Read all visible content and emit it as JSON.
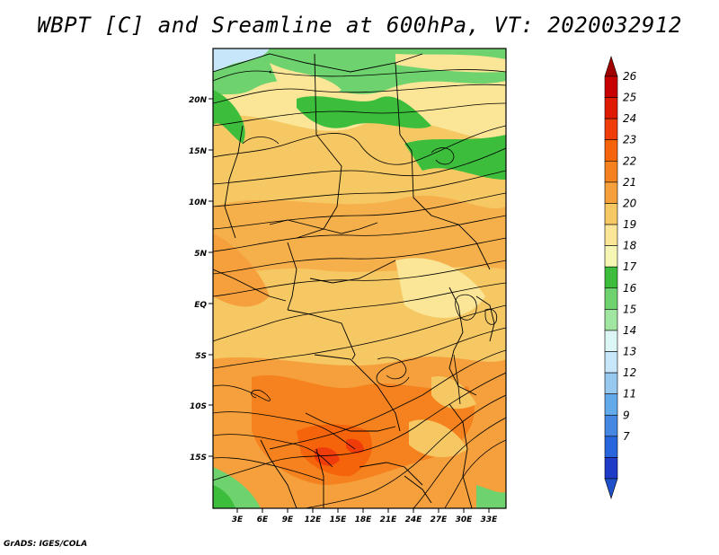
{
  "title": "WBPT [C] and Sreamline at 600hPa, VT: 2020032912",
  "footer": "GrADS: IGES/COLA",
  "map": {
    "region": "Central Africa",
    "lat_labels": [
      "20N",
      "15N",
      "10N",
      "5N",
      "EQ",
      "5S",
      "10S",
      "15S"
    ],
    "lon_labels": [
      "3E",
      "6E",
      "9E",
      "12E",
      "15E",
      "18E",
      "21E",
      "24E",
      "27E",
      "30E",
      "33E"
    ]
  },
  "colorbar": {
    "labels": [
      "26",
      "25",
      "24",
      "23",
      "22",
      "21",
      "20",
      "19",
      "18",
      "17",
      "16",
      "15",
      "14",
      "13",
      "12",
      "11",
      "9",
      "7"
    ],
    "colors": [
      "#c80000",
      "#e01a00",
      "#f03c0a",
      "#f5640a",
      "#f5821e",
      "#f5a03c",
      "#f5c864",
      "#fae696",
      "#f5f5b4",
      "#3cbe3c",
      "#6ed26e",
      "#a0e6a0",
      "#dcf5f5",
      "#c8e6fa",
      "#96c8f0",
      "#64aaeb",
      "#4687e1",
      "#2864dc",
      "#1e3cc8"
    ],
    "top_arrow_color": "#a00000",
    "bottom_arrow_color": "#1e50c8"
  }
}
